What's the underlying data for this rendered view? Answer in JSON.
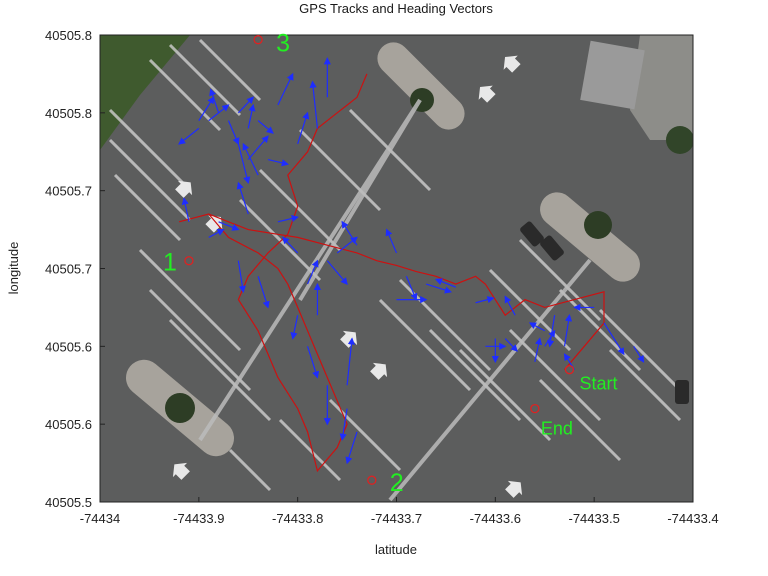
{
  "chart_data": {
    "type": "line",
    "title": "GPS Tracks and Heading Vectors",
    "xlabel": "latitude",
    "ylabel": "longitude",
    "xlim": [
      -74434.0,
      -74433.4
    ],
    "ylim": [
      40505.5,
      40505.8
    ],
    "x_ticks": [
      -74434.0,
      -74433.9,
      -74433.8,
      -74433.7,
      -74433.6,
      -74433.5,
      -74433.4
    ],
    "x_tick_labels": [
      "-74434",
      "-74433.9",
      "-74433.8",
      "-74433.7",
      "-74433.6",
      "-74433.5",
      "-74433.4"
    ],
    "y_ticks": [
      40505.5,
      40505.55,
      40505.6,
      40505.65,
      40505.7,
      40505.75,
      40505.8
    ],
    "y_tick_labels": [
      "40505.5",
      "40505.6",
      "40505.6",
      "40505.7",
      "40505.7",
      "40505.8",
      "40505.8"
    ],
    "grid": false,
    "background": "satellite image of a parking lot",
    "colors": {
      "track": "#cc1111",
      "heading": "#1e2dff",
      "marker": "#dd2222",
      "label": "#22ee22",
      "asphalt": "#5d5d5d"
    },
    "series": [
      {
        "role": "gps-track",
        "x": [
          -74433.53,
          -74433.51,
          -74433.49,
          -74433.49,
          -74433.52,
          -74433.55,
          -74433.57,
          -74433.59,
          -74433.61,
          -74433.62,
          -74433.64,
          -74433.66,
          -74433.68,
          -74433.7,
          -74433.72,
          -74433.74,
          -74433.77,
          -74433.8,
          -74433.82,
          -74433.85,
          -74433.87,
          -74433.89,
          -74433.92,
          -74433.89,
          -74433.87,
          -74433.84,
          -74433.82,
          -74433.81,
          -74433.8,
          -74433.79,
          -74433.78,
          -74433.77,
          -74433.76,
          -74433.75,
          -74433.76,
          -74433.78,
          -74433.79,
          -74433.8,
          -74433.82,
          -74433.84,
          -74433.86,
          -74433.85,
          -74433.83,
          -74433.81,
          -74433.8,
          -74433.81,
          -74433.79,
          -74433.78,
          -74433.76,
          -74433.75,
          -74433.74,
          -74433.73
        ],
        "y": [
          40505.585,
          40505.6,
          40505.615,
          40505.635,
          40505.63,
          40505.625,
          40505.63,
          40505.62,
          40505.64,
          40505.645,
          40505.64,
          40505.645,
          40505.648,
          40505.652,
          40505.655,
          40505.66,
          40505.665,
          40505.67,
          40505.672,
          40505.675,
          40505.68,
          40505.685,
          40505.68,
          40505.685,
          40505.67,
          40505.66,
          40505.65,
          40505.64,
          40505.625,
          40505.61,
          40505.595,
          40505.58,
          40505.565,
          40505.55,
          40505.535,
          40505.52,
          40505.545,
          40505.56,
          40505.58,
          40505.61,
          40505.63,
          40505.645,
          40505.66,
          40505.672,
          40505.69,
          40505.71,
          40505.725,
          40505.74,
          40505.75,
          40505.755,
          40505.76,
          40505.775
        ]
      }
    ],
    "markers": [
      {
        "label": "Start",
        "x": -74433.525,
        "y": 40505.585
      },
      {
        "label": "End",
        "x": -74433.56,
        "y": 40505.56
      },
      {
        "label": "1",
        "x": -74433.91,
        "y": 40505.655
      },
      {
        "label": "2",
        "x": -74433.725,
        "y": 40505.514
      },
      {
        "label": "3",
        "x": -74433.84,
        "y": 40505.797
      }
    ],
    "heading_vectors": [
      {
        "x": -74433.52,
        "y": 40505.585,
        "dx": -0.01,
        "dy": 0.01
      },
      {
        "x": -74433.55,
        "y": 40505.6,
        "dx": 0.01,
        "dy": 0.01
      },
      {
        "x": -74433.55,
        "y": 40505.61,
        "dx": -0.015,
        "dy": 0.005
      },
      {
        "x": -74433.56,
        "y": 40505.59,
        "dx": 0.005,
        "dy": 0.015
      },
      {
        "x": -74433.58,
        "y": 40505.62,
        "dx": -0.01,
        "dy": 0.012
      },
      {
        "x": -74433.59,
        "y": 40505.605,
        "dx": 0.012,
        "dy": -0.008
      },
      {
        "x": -74433.49,
        "y": 40505.615,
        "dx": 0.02,
        "dy": -0.02
      },
      {
        "x": -74433.5,
        "y": 40505.625,
        "dx": -0.02,
        "dy": 0.0
      },
      {
        "x": -74433.62,
        "y": 40505.628,
        "dx": 0.018,
        "dy": 0.003
      },
      {
        "x": -74433.64,
        "y": 40505.638,
        "dx": -0.02,
        "dy": 0.005
      },
      {
        "x": -74433.67,
        "y": 40505.64,
        "dx": 0.025,
        "dy": -0.005
      },
      {
        "x": -74433.69,
        "y": 40505.645,
        "dx": 0.01,
        "dy": -0.015
      },
      {
        "x": -74433.7,
        "y": 40505.66,
        "dx": -0.01,
        "dy": 0.015
      },
      {
        "x": -74433.74,
        "y": 40505.665,
        "dx": -0.015,
        "dy": 0.015
      },
      {
        "x": -74433.76,
        "y": 40505.66,
        "dx": 0.02,
        "dy": 0.01
      },
      {
        "x": -74433.77,
        "y": 40505.655,
        "dx": 0.02,
        "dy": -0.015
      },
      {
        "x": -74433.8,
        "y": 40505.66,
        "dx": -0.015,
        "dy": 0.01
      },
      {
        "x": -74433.82,
        "y": 40505.68,
        "dx": 0.02,
        "dy": 0.003
      },
      {
        "x": -74433.85,
        "y": 40505.685,
        "dx": -0.01,
        "dy": 0.02
      },
      {
        "x": -74433.88,
        "y": 40505.68,
        "dx": 0.02,
        "dy": -0.005
      },
      {
        "x": -74433.91,
        "y": 40505.68,
        "dx": -0.005,
        "dy": 0.015
      },
      {
        "x": -74433.89,
        "y": 40505.67,
        "dx": 0.015,
        "dy": 0.005
      },
      {
        "x": -74433.86,
        "y": 40505.655,
        "dx": 0.005,
        "dy": -0.02
      },
      {
        "x": -74433.84,
        "y": 40505.645,
        "dx": 0.01,
        "dy": -0.02
      },
      {
        "x": -74433.8,
        "y": 40505.62,
        "dx": -0.005,
        "dy": -0.015
      },
      {
        "x": -74433.79,
        "y": 40505.6,
        "dx": 0.01,
        "dy": -0.02
      },
      {
        "x": -74433.77,
        "y": 40505.575,
        "dx": 0.0,
        "dy": -0.025
      },
      {
        "x": -74433.75,
        "y": 40505.56,
        "dx": -0.005,
        "dy": -0.02
      },
      {
        "x": -74433.74,
        "y": 40505.545,
        "dx": -0.01,
        "dy": -0.02
      },
      {
        "x": -74433.75,
        "y": 40505.575,
        "dx": 0.005,
        "dy": 0.03
      },
      {
        "x": -74433.78,
        "y": 40505.62,
        "dx": 0.0,
        "dy": 0.02
      },
      {
        "x": -74433.79,
        "y": 40505.64,
        "dx": 0.01,
        "dy": 0.015
      },
      {
        "x": -74433.85,
        "y": 40505.72,
        "dx": 0.02,
        "dy": 0.015
      },
      {
        "x": -74433.84,
        "y": 40505.71,
        "dx": -0.015,
        "dy": 0.02
      },
      {
        "x": -74433.86,
        "y": 40505.73,
        "dx": 0.01,
        "dy": -0.025
      },
      {
        "x": -74433.85,
        "y": 40505.74,
        "dx": 0.005,
        "dy": 0.015
      },
      {
        "x": -74433.83,
        "y": 40505.72,
        "dx": 0.02,
        "dy": -0.003
      },
      {
        "x": -74433.8,
        "y": 40505.73,
        "dx": 0.01,
        "dy": 0.02
      },
      {
        "x": -74433.78,
        "y": 40505.74,
        "dx": -0.005,
        "dy": 0.03
      },
      {
        "x": -74433.77,
        "y": 40505.76,
        "dx": 0.0,
        "dy": 0.025
      },
      {
        "x": -74433.82,
        "y": 40505.755,
        "dx": 0.015,
        "dy": 0.02
      },
      {
        "x": -74433.9,
        "y": 40505.74,
        "dx": -0.02,
        "dy": -0.01
      },
      {
        "x": -74433.89,
        "y": 40505.745,
        "dx": 0.02,
        "dy": 0.01
      },
      {
        "x": -74433.87,
        "y": 40505.745,
        "dx": 0.01,
        "dy": -0.015
      },
      {
        "x": -74433.88,
        "y": 40505.75,
        "dx": -0.008,
        "dy": 0.015
      },
      {
        "x": -74433.86,
        "y": 40505.75,
        "dx": 0.015,
        "dy": 0.01
      },
      {
        "x": -74433.84,
        "y": 40505.745,
        "dx": 0.015,
        "dy": -0.008
      },
      {
        "x": -74433.9,
        "y": 40505.745,
        "dx": 0.015,
        "dy": 0.015
      },
      {
        "x": -74433.7,
        "y": 40505.63,
        "dx": 0.03,
        "dy": 0.0
      },
      {
        "x": -74433.46,
        "y": 40505.6,
        "dx": 0.01,
        "dy": -0.01
      },
      {
        "x": -74433.54,
        "y": 40505.62,
        "dx": -0.005,
        "dy": -0.02
      },
      {
        "x": -74433.53,
        "y": 40505.6,
        "dx": 0.005,
        "dy": 0.02
      },
      {
        "x": -74433.6,
        "y": 40505.605,
        "dx": 0.0,
        "dy": -0.015
      },
      {
        "x": -74433.61,
        "y": 40505.6,
        "dx": 0.02,
        "dy": 0.0
      }
    ]
  }
}
